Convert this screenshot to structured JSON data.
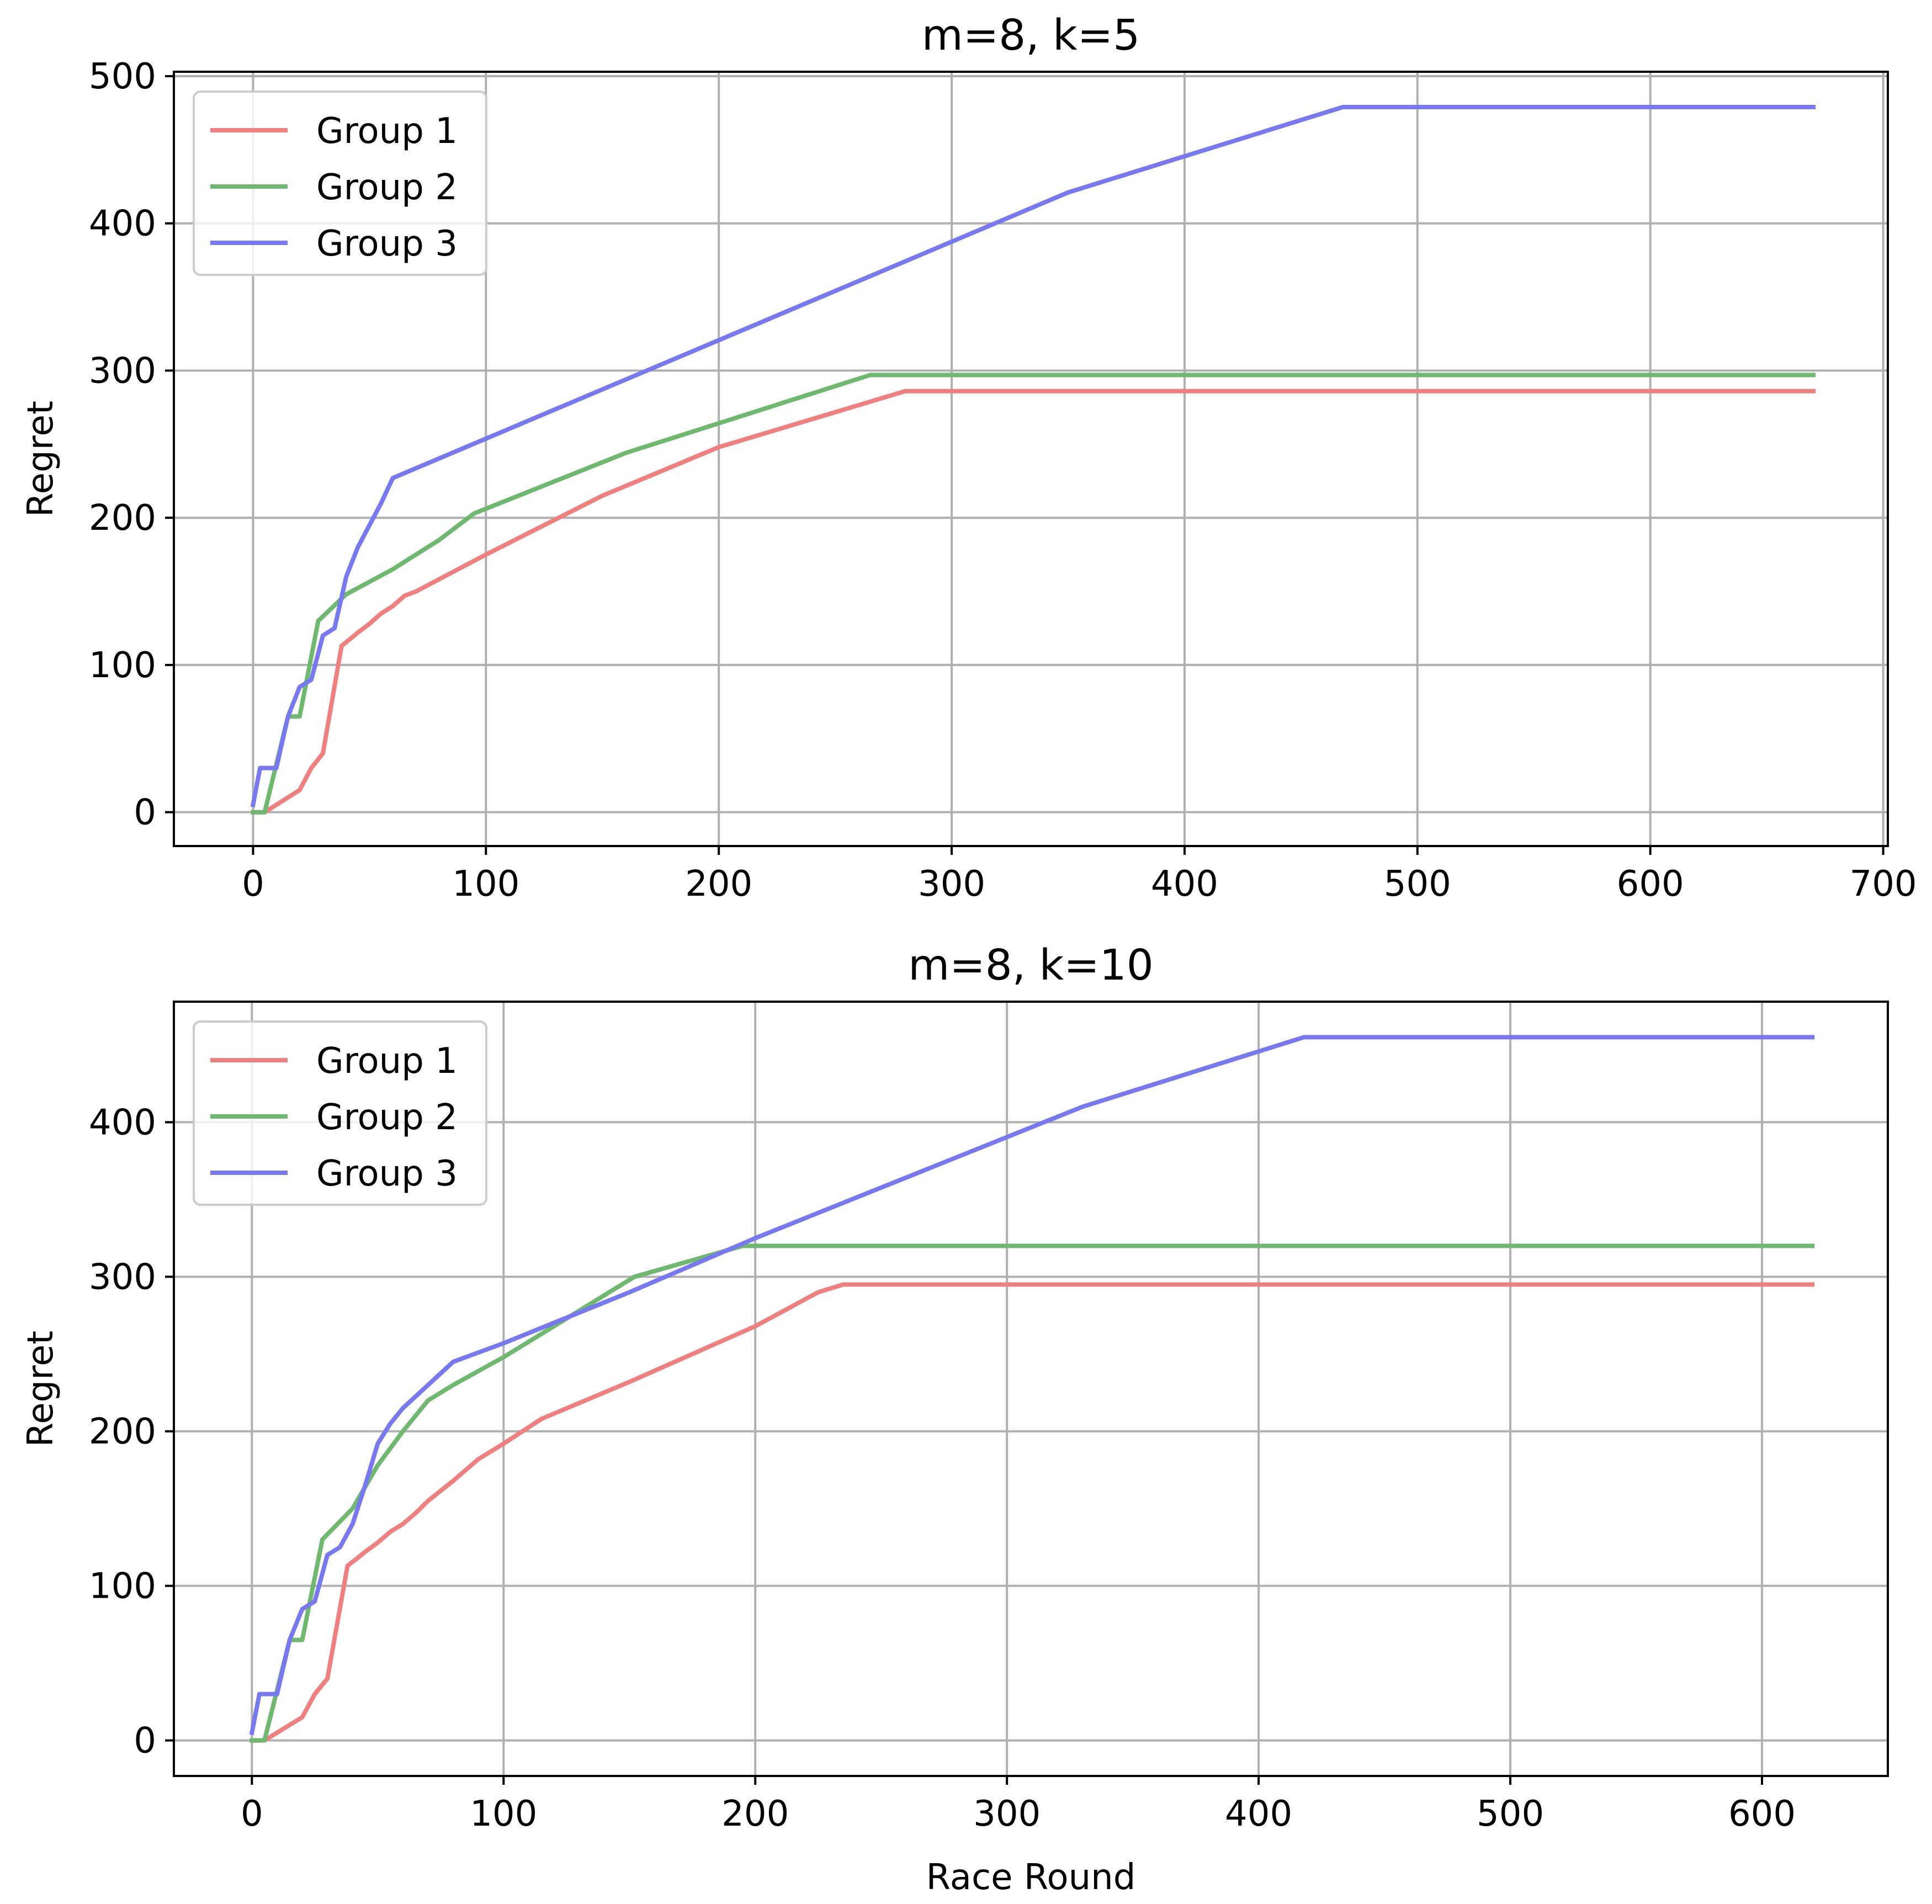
{
  "chart_data": [
    {
      "type": "line",
      "title": "m=8, k=5",
      "xlabel": "",
      "ylabel": "Regret",
      "xlim": [
        -34,
        702
      ],
      "ylim": [
        -23,
        503
      ],
      "xticks": [
        0,
        100,
        200,
        300,
        400,
        500,
        600,
        700
      ],
      "yticks": [
        0,
        100,
        200,
        300,
        400,
        500
      ],
      "grid": true,
      "legend_position": "top-left",
      "series": [
        {
          "name": "Group 1",
          "color": "#f08080",
          "x": [
            0,
            5,
            10,
            20,
            25,
            30,
            38,
            42,
            45,
            50,
            55,
            60,
            65,
            70,
            100,
            150,
            200,
            280,
            670
          ],
          "y": [
            0,
            0,
            5,
            15,
            30,
            40,
            113,
            118,
            122,
            128,
            135,
            140,
            147,
            150,
            175,
            215,
            248,
            286,
            286
          ]
        },
        {
          "name": "Group 2",
          "color": "#6fb86f",
          "x": [
            0,
            5,
            15,
            20,
            28,
            40,
            60,
            80,
            95,
            160,
            265,
            670
          ],
          "y": [
            0,
            0,
            65,
            65,
            130,
            148,
            165,
            185,
            203,
            244,
            297,
            297
          ]
        },
        {
          "name": "Group 3",
          "color": "#7878f0",
          "x": [
            0,
            3,
            10,
            15,
            20,
            25,
            30,
            35,
            40,
            45,
            50,
            55,
            60,
            350,
            468,
            670
          ],
          "y": [
            5,
            30,
            30,
            65,
            85,
            90,
            120,
            125,
            160,
            180,
            195,
            210,
            227,
            421,
            479,
            479
          ]
        }
      ]
    },
    {
      "type": "line",
      "title": "m=8, k=10",
      "xlabel": "Race Round",
      "ylabel": "Regret",
      "xlim": [
        -31,
        650
      ],
      "ylim": [
        -23,
        478
      ],
      "xticks": [
        0,
        100,
        200,
        300,
        400,
        500,
        600
      ],
      "yticks": [
        0,
        100,
        200,
        300,
        400
      ],
      "grid": true,
      "legend_position": "top-left",
      "series": [
        {
          "name": "Group 1",
          "color": "#f08080",
          "x": [
            0,
            5,
            10,
            20,
            25,
            30,
            38,
            42,
            45,
            50,
            55,
            60,
            65,
            70,
            80,
            90,
            100,
            115,
            150,
            200,
            225,
            235,
            620
          ],
          "y": [
            0,
            0,
            5,
            15,
            30,
            40,
            113,
            118,
            122,
            128,
            135,
            140,
            147,
            155,
            168,
            182,
            192,
            208,
            232,
            268,
            290,
            295,
            295
          ]
        },
        {
          "name": "Group 2",
          "color": "#6fb86f",
          "x": [
            0,
            5,
            15,
            20,
            28,
            40,
            50,
            60,
            70,
            80,
            100,
            120,
            152,
            195,
            620
          ],
          "y": [
            0,
            0,
            65,
            65,
            130,
            150,
            178,
            200,
            220,
            230,
            248,
            268,
            300,
            320,
            320
          ]
        },
        {
          "name": "Group 3",
          "color": "#7878f0",
          "x": [
            0,
            3,
            10,
            15,
            20,
            25,
            30,
            35,
            40,
            45,
            50,
            55,
            60,
            70,
            80,
            100,
            150,
            200,
            330,
            418,
            620
          ],
          "y": [
            5,
            30,
            30,
            65,
            85,
            90,
            120,
            125,
            140,
            165,
            192,
            205,
            215,
            230,
            245,
            257,
            290,
            325,
            410,
            455,
            455
          ]
        }
      ]
    }
  ]
}
